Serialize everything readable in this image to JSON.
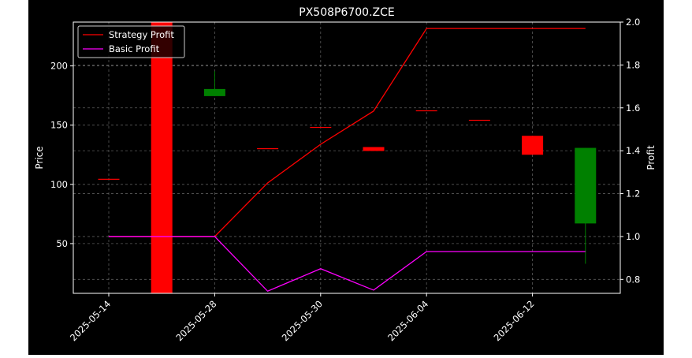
{
  "chart_data": {
    "type": "candlestick",
    "title": "PX508P6700.ZCE",
    "ylabel_left": "Price",
    "ylabel_right": "Profit",
    "x_tick_labels": [
      "2025-05-14",
      "2025-05-28",
      "2025-05-30",
      "2025-06-04",
      "2025-06-12"
    ],
    "y_left_ticks": [
      50,
      100,
      150,
      200
    ],
    "y_right_ticks": [
      "0.8",
      "1.0",
      "1.2",
      "1.4",
      "1.6",
      "1.8",
      "2.0"
    ],
    "ylim_left": [
      8,
      237
    ],
    "ylim_right": [
      0.735,
      2.0
    ],
    "grid": true,
    "legend_position": "top-left",
    "colors": {
      "up": "#008000",
      "down": "#ff0000",
      "strategy": "#ff0000",
      "basic": "#ff00ff",
      "grid": "#808080"
    },
    "candles": [
      {
        "open": 104.7,
        "close": 104.7,
        "high": 104.7,
        "low": 104.7
      },
      {
        "open": 237,
        "close": 8,
        "high": 237,
        "low": 8
      },
      {
        "open": 174.5,
        "close": 180.5,
        "high": 195.5,
        "low": 174.5
      },
      {
        "open": 130.5,
        "close": 130.5,
        "high": 130.5,
        "low": 130.5
      },
      {
        "open": 148.5,
        "close": 148.5,
        "high": 148.5,
        "low": 148.5
      },
      {
        "open": 131.5,
        "close": 128.2,
        "high": 131.5,
        "low": 128.2
      },
      {
        "open": 162.5,
        "close": 162.5,
        "high": 162.5,
        "low": 162.5
      },
      {
        "open": 154.5,
        "close": 154.5,
        "high": 154.5,
        "low": 154.5
      },
      {
        "open": 141,
        "close": 125,
        "high": 141,
        "low": 125
      },
      {
        "open": 67,
        "close": 130.8,
        "high": 130.8,
        "low": 33
      }
    ],
    "series": [
      {
        "name": "Strategy Profit",
        "x_index": [
          0,
          1,
          2,
          3,
          4,
          5,
          6,
          7,
          8,
          9
        ],
        "values": [
          1.0,
          1.0,
          1.0,
          1.25,
          1.43,
          1.585,
          1.97,
          1.97,
          1.97,
          1.97
        ]
      },
      {
        "name": "Basic Profit",
        "x_index": [
          0,
          1,
          2,
          3,
          4,
          5,
          6,
          7,
          8,
          9
        ],
        "values": [
          1.0,
          1.0,
          1.0,
          0.745,
          0.85,
          0.75,
          0.93,
          0.93,
          0.93,
          0.93
        ]
      }
    ],
    "x_tick_positions": [
      0,
      2,
      4,
      6,
      8
    ]
  }
}
